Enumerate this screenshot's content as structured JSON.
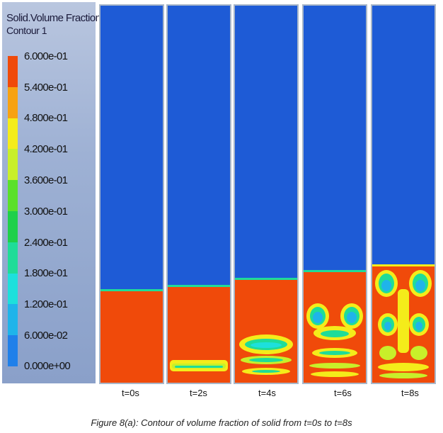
{
  "legend": {
    "title": "Solid.Volume Fraction",
    "subtitle": "Contour 1",
    "ticks": [
      "6.000e-01",
      "5.400e-01",
      "4.800e-01",
      "4.200e-01",
      "3.600e-01",
      "3.000e-01",
      "2.400e-01",
      "1.800e-01",
      "1.200e-01",
      "6.000e-02",
      "0.000e+00"
    ],
    "colors": [
      "#f04a0a",
      "#f7a212",
      "#f4ec1a",
      "#c8ef2a",
      "#5be02a",
      "#1fd04a",
      "#1fdc98",
      "#1de0dc",
      "#1fb4ea",
      "#2080ea"
    ]
  },
  "panels": [
    {
      "label": "t=0s",
      "bed_fraction": 0.245
    },
    {
      "label": "t=2s",
      "bed_fraction": 0.255
    },
    {
      "label": "t=4s",
      "bed_fraction": 0.275
    },
    {
      "label": "t=6s",
      "bed_fraction": 0.295
    },
    {
      "label": "t=8s",
      "bed_fraction": 0.31
    }
  ],
  "caption": "Figure 8(a): Contour of volume fraction of solid from t=0s to t=8s"
}
